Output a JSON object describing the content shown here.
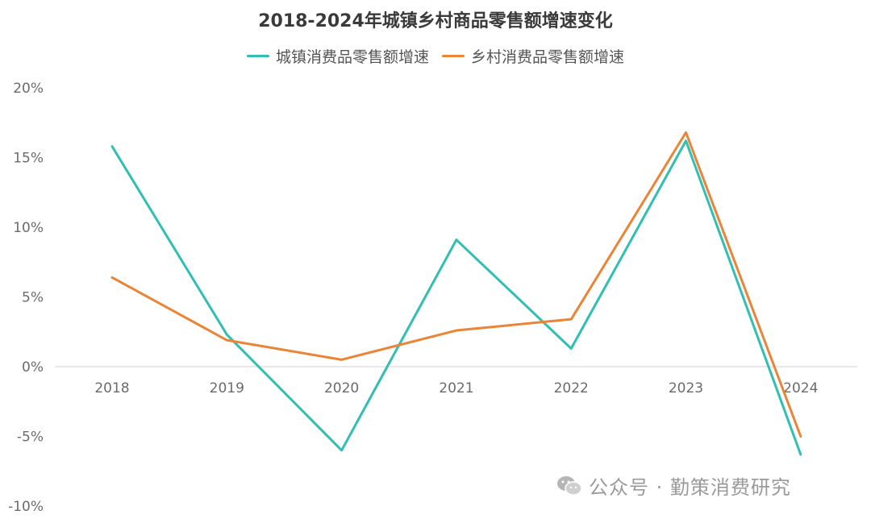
{
  "chart_data": {
    "type": "line",
    "title": "2018-2024年城镇乡村商品零售额增速变化",
    "categories": [
      "2018",
      "2019",
      "2020",
      "2021",
      "2022",
      "2023",
      "2024"
    ],
    "series": [
      {
        "name": "城镇消费品零售额增速",
        "color": "#2fbfb3",
        "values": [
          15.8,
          2.3,
          -6.0,
          9.1,
          1.3,
          16.2,
          -6.3
        ]
      },
      {
        "name": "乡村消费品零售额增速",
        "color": "#ec8436",
        "values": [
          6.4,
          1.9,
          0.5,
          2.6,
          3.4,
          16.8,
          -5.0
        ]
      }
    ],
    "ylim": [
      -10,
      20
    ],
    "yticks": [
      20,
      15,
      10,
      5,
      0,
      -5,
      -10
    ],
    "ytick_labels": [
      "20%",
      "15%",
      "10%",
      "5%",
      "0%",
      "-5%",
      "-10%"
    ],
    "xlabel": "",
    "ylabel": "",
    "grid": false,
    "legend_position": "top-center"
  },
  "watermark": {
    "text": "公众号 · 勤策消费研究",
    "icon": "wechat-icon"
  }
}
